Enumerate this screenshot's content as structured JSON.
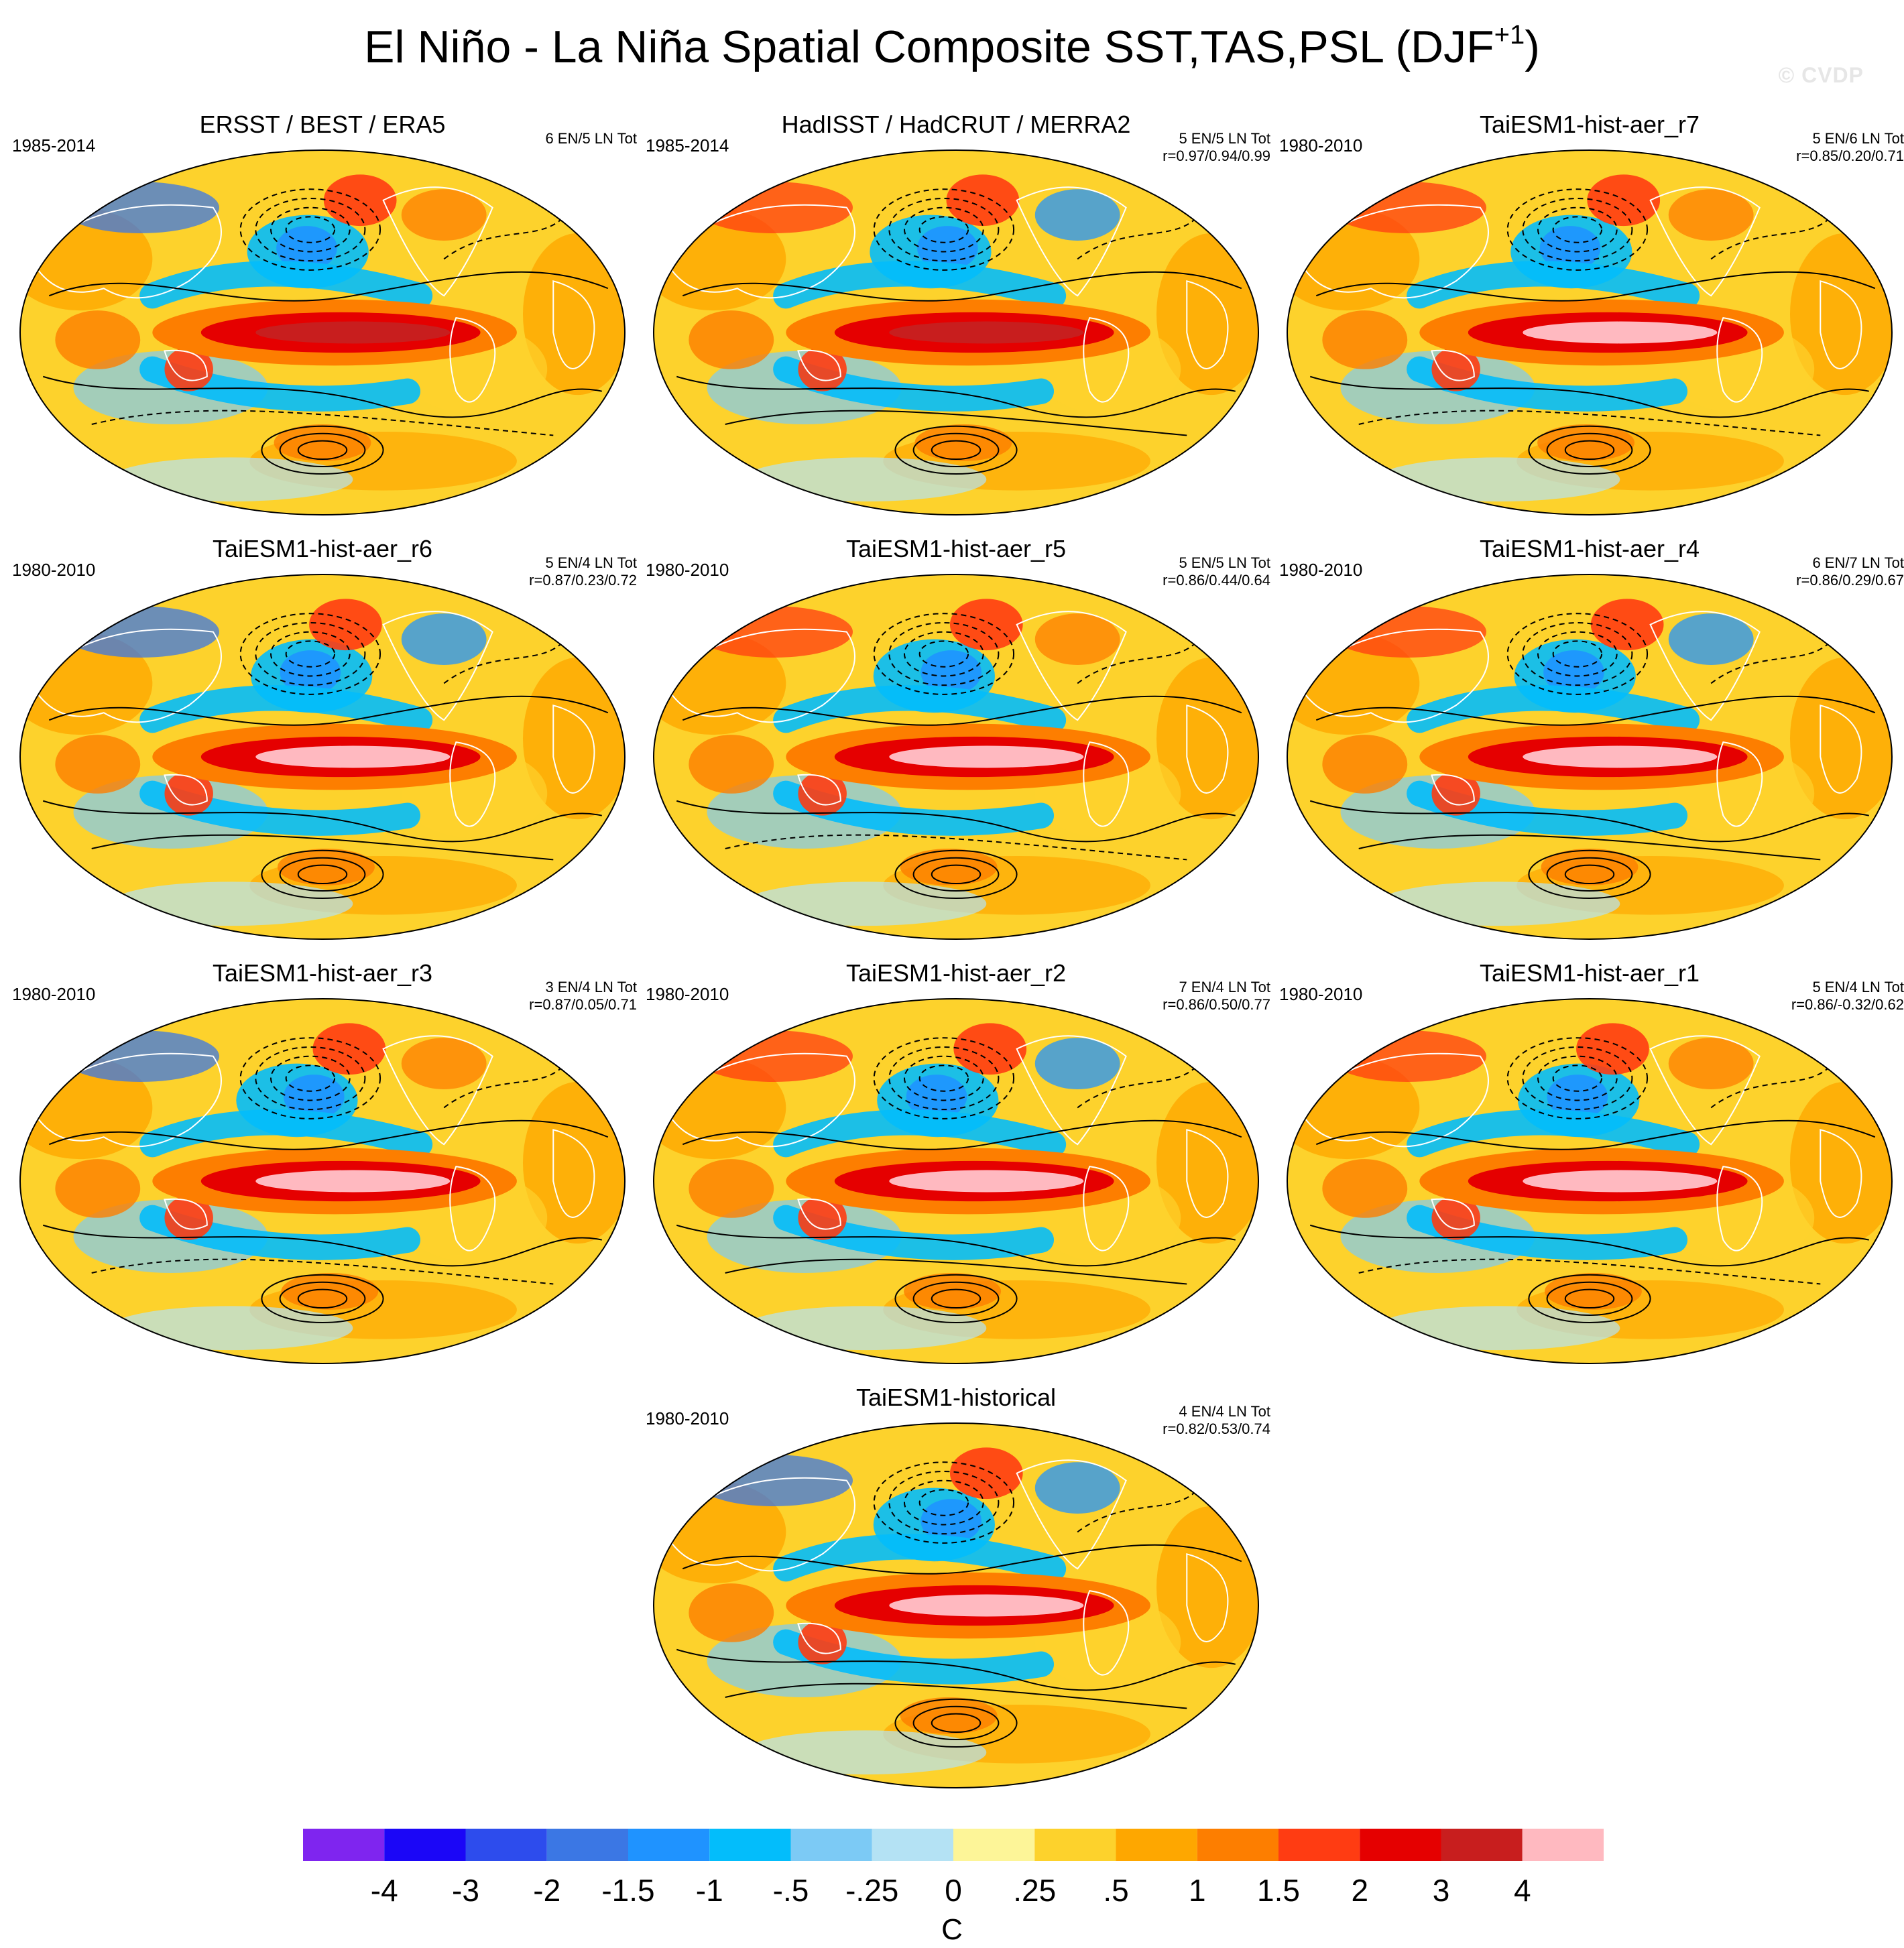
{
  "figure": {
    "title_main": "El Niño - La Niña Spatial Composite SST,TAS,PSL (DJF",
    "title_sup": "+1",
    "title_close": ")",
    "watermark": "© CVDP"
  },
  "panels": [
    {
      "title": "ERSST / BEST / ERA5",
      "years": "1985-2014",
      "counts": "6 EN/5 LN Tot",
      "corr": ""
    },
    {
      "title": "HadISST / HadCRUT / MERRA2",
      "years": "1985-2014",
      "counts": "5 EN/5 LN Tot",
      "corr": "r=0.97/0.94/0.99"
    },
    {
      "title": "TaiESM1-hist-aer_r7",
      "years": "1980-2010",
      "counts": "5 EN/6 LN Tot",
      "corr": "r=0.85/0.20/0.71"
    },
    {
      "title": "TaiESM1-hist-aer_r6",
      "years": "1980-2010",
      "counts": "5 EN/4 LN Tot",
      "corr": "r=0.87/0.23/0.72"
    },
    {
      "title": "TaiESM1-hist-aer_r5",
      "years": "1980-2010",
      "counts": "5 EN/5 LN Tot",
      "corr": "r=0.86/0.44/0.64"
    },
    {
      "title": "TaiESM1-hist-aer_r4",
      "years": "1980-2010",
      "counts": "6 EN/7 LN Tot",
      "corr": "r=0.86/0.29/0.67"
    },
    {
      "title": "TaiESM1-hist-aer_r3",
      "years": "1980-2010",
      "counts": "3 EN/4 LN Tot",
      "corr": "r=0.87/0.05/0.71"
    },
    {
      "title": "TaiESM1-hist-aer_r2",
      "years": "1980-2010",
      "counts": "7 EN/4 LN Tot",
      "corr": "r=0.86/0.50/0.77"
    },
    {
      "title": "TaiESM1-hist-aer_r1",
      "years": "1980-2010",
      "counts": "5 EN/4 LN Tot",
      "corr": "r=0.86/-0.32/0.62"
    },
    {
      "title": "TaiESM1-historical",
      "years": "1980-2010",
      "counts": "4 EN/4 LN Tot",
      "corr": "r=0.82/0.53/0.74"
    }
  ],
  "colorbar": {
    "unit": "C",
    "colors": [
      "#7f25ef",
      "#1b06f7",
      "#2d4ced",
      "#3b77e4",
      "#1f93ff",
      "#03bdfb",
      "#7ccaf5",
      "#b4e2f4",
      "#fdf598",
      "#fdd22c",
      "#fea700",
      "#fd7e00",
      "#ff3c12",
      "#e50000",
      "#c81e1e",
      "#ffb9c0"
    ],
    "labels": [
      "-4",
      "-3",
      "-2",
      "-1.5",
      "-1",
      "-.5",
      "-.25",
      "0",
      ".25",
      ".5",
      "1",
      "1.5",
      "2",
      "3",
      "4"
    ]
  }
}
